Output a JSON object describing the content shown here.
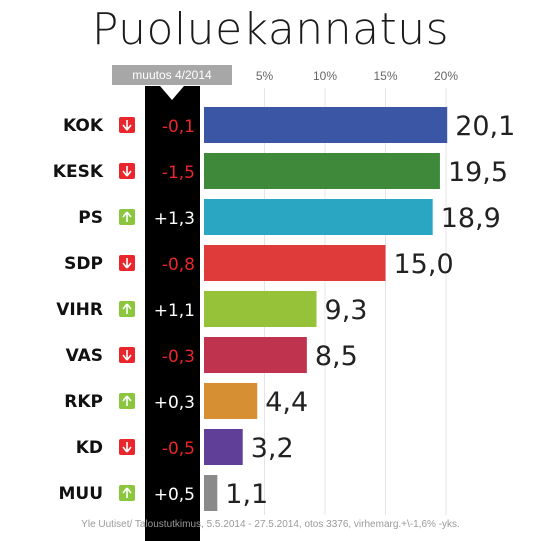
{
  "chart_data": {
    "type": "bar",
    "title": "Puoluekannatus",
    "change_header": "muutos 4/2014",
    "categories": [
      "KOK",
      "KESK",
      "PS",
      "SDP",
      "VIHR",
      "VAS",
      "RKP",
      "KD",
      "MUU"
    ],
    "values": [
      20.1,
      19.5,
      18.9,
      15.0,
      9.3,
      8.5,
      4.4,
      3.2,
      1.1
    ],
    "value_labels": [
      "20,1",
      "19,5",
      "18,9",
      "15,0",
      "9,3",
      "8,5",
      "4,4",
      "3,2",
      "1,1"
    ],
    "changes": [
      -0.1,
      -1.5,
      1.3,
      -0.8,
      1.1,
      -0.3,
      0.3,
      -0.5,
      0.5
    ],
    "change_labels": [
      "-0,1",
      "-1,5",
      "+1,3",
      "-0,8",
      "+1,1",
      "-0,3",
      "+0,3",
      "-0,5",
      "+0,5"
    ],
    "colors": [
      "#3a56a5",
      "#3f8a3a",
      "#2aa6c3",
      "#e03b3b",
      "#96c23a",
      "#c0334f",
      "#d68f33",
      "#5f3f97",
      "#8a8a8a"
    ],
    "x_ticks": [
      "5%",
      "10%",
      "15%",
      "20%"
    ],
    "x_tick_values": [
      5,
      10,
      15,
      20
    ],
    "xlim": [
      0,
      22
    ],
    "grid": true,
    "up_color": "#8cc63f",
    "down_color": "#e8262c",
    "source": "Yle Uutiset/ Taloustutkimus, 5.5.2014 - 27.5.2014, otos 3376, virhemarg.+\\-1,6% -yks."
  }
}
